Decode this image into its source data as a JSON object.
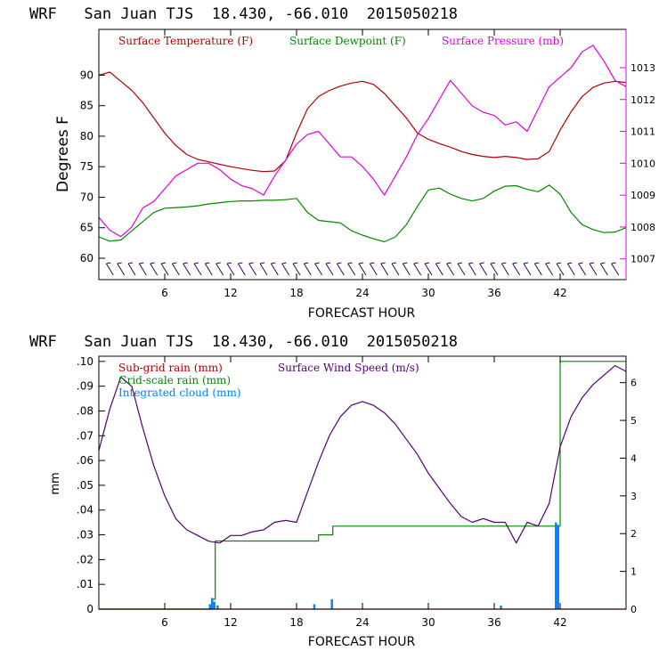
{
  "chart_data": [
    {
      "type": "line",
      "title": "WRF   San Juan TJS  18.430, -66.010  2015050218",
      "xlabel": "FORECAST HOUR",
      "ylabel": "Degrees F",
      "xlim": [
        0,
        48
      ],
      "xticks": [
        6,
        12,
        18,
        24,
        30,
        36,
        42
      ],
      "ylim": [
        56.5,
        97.5
      ],
      "yticks": [
        60,
        65,
        70,
        75,
        80,
        85,
        90
      ],
      "y2lim": [
        1006.35,
        1014.2
      ],
      "y2ticks": [
        1007,
        1008,
        1009,
        1010,
        1011,
        1012,
        1013
      ],
      "grid": false,
      "legend_position": "top",
      "series": [
        {
          "name": "Surface Temperature (F)",
          "color": "#b00000",
          "axis": "left",
          "x": [
            0,
            1,
            2,
            3,
            4,
            5,
            6,
            7,
            8,
            9,
            10,
            11,
            12,
            13,
            14,
            15,
            16,
            17,
            18,
            19,
            20,
            21,
            22,
            23,
            24,
            25,
            26,
            27,
            28,
            29,
            30,
            31,
            32,
            33,
            34,
            35,
            36,
            37,
            38,
            39,
            40,
            41,
            42,
            43,
            44,
            45,
            46,
            47,
            48
          ],
          "values": [
            90,
            90.5,
            89,
            87.5,
            85.5,
            83,
            80.5,
            78.5,
            77,
            76.2,
            75.8,
            75.4,
            75,
            74.7,
            74.4,
            74.2,
            74.3,
            76,
            80.5,
            84.5,
            86.5,
            87.5,
            88.2,
            88.7,
            89,
            88.5,
            87,
            85,
            83,
            80.5,
            79.5,
            78.8,
            78.2,
            77.5,
            77,
            76.7,
            76.5,
            76.7,
            76.5,
            76.2,
            76.3,
            77.5,
            81,
            84,
            86.5,
            88,
            88.7,
            89,
            88.8
          ]
        },
        {
          "name": "Surface Dewpoint (F)",
          "color": "#008800",
          "axis": "left",
          "x": [
            0,
            1,
            2,
            3,
            4,
            5,
            6,
            7,
            8,
            9,
            10,
            11,
            12,
            13,
            14,
            15,
            16,
            17,
            18,
            19,
            20,
            21,
            22,
            23,
            24,
            25,
            26,
            27,
            28,
            29,
            30,
            31,
            32,
            33,
            34,
            35,
            36,
            37,
            38,
            39,
            40,
            41,
            42,
            43,
            44,
            45,
            46,
            47,
            48
          ],
          "values": [
            63.5,
            62.8,
            63,
            64.5,
            66,
            67.5,
            68.2,
            68.3,
            68.4,
            68.6,
            68.9,
            69.1,
            69.3,
            69.4,
            69.4,
            69.5,
            69.5,
            69.6,
            69.8,
            67.5,
            66.2,
            66,
            65.8,
            64.5,
            63.8,
            63.2,
            62.7,
            63.5,
            65.5,
            68.5,
            71.2,
            71.5,
            70.5,
            69.8,
            69.4,
            69.8,
            71,
            71.8,
            71.9,
            71.3,
            70.9,
            72,
            70.5,
            67.5,
            65.5,
            64.7,
            64.2,
            64.3,
            65
          ]
        },
        {
          "name": "Surface Pressure (mb)",
          "color": "#e000e0",
          "axis": "right",
          "x": [
            0,
            1,
            2,
            3,
            4,
            5,
            6,
            7,
            8,
            9,
            10,
            11,
            12,
            13,
            14,
            15,
            16,
            17,
            18,
            19,
            20,
            21,
            22,
            23,
            24,
            25,
            26,
            27,
            28,
            29,
            30,
            31,
            32,
            33,
            34,
            35,
            36,
            37,
            38,
            39,
            40,
            41,
            42,
            43,
            44,
            45,
            46,
            47,
            48
          ],
          "values": [
            1008.3,
            1007.9,
            1007.7,
            1008.0,
            1008.6,
            1008.8,
            1009.2,
            1009.6,
            1009.8,
            1010.0,
            1010.0,
            1009.8,
            1009.5,
            1009.3,
            1009.2,
            1009.0,
            1009.6,
            1010.1,
            1010.6,
            1010.9,
            1011.0,
            1010.6,
            1010.2,
            1010.2,
            1009.9,
            1009.5,
            1009.0,
            1009.6,
            1010.2,
            1010.9,
            1011.4,
            1012.0,
            1012.6,
            1012.2,
            1011.8,
            1011.6,
            1011.5,
            1011.2,
            1011.3,
            1011.0,
            1011.7,
            1012.4,
            1012.7,
            1013.0,
            1013.5,
            1013.7,
            1013.2,
            1012.6,
            1012.4
          ]
        }
      ]
    },
    {
      "type": "line",
      "title": "WRF   San Juan TJS  18.430, -66.010  2015050218",
      "xlabel": "FORECAST HOUR",
      "ylabel": "mm",
      "xlim": [
        0,
        48
      ],
      "xticks": [
        6,
        12,
        18,
        24,
        30,
        36,
        42
      ],
      "ylim": [
        0,
        0.1021
      ],
      "yticks": [
        0,
        0.01,
        0.02,
        0.03,
        0.04,
        0.05,
        0.06,
        0.07,
        0.08,
        0.09,
        0.1
      ],
      "ytick_labels": [
        "0",
        ".01",
        ".02",
        ".03",
        ".04",
        ".05",
        ".06",
        ".07",
        ".08",
        ".09",
        ".10"
      ],
      "y2lim": [
        0,
        6.7
      ],
      "y2ticks": [
        0,
        1,
        2,
        3,
        4,
        5,
        6
      ],
      "grid": false,
      "legend_position": "top-left",
      "series": [
        {
          "name": "Sub-grid rain (mm)",
          "color": "#b00000",
          "axis": "left",
          "x": [
            0,
            48
          ],
          "values": [
            0,
            0
          ]
        },
        {
          "name": "Grid-scale rain (mm)",
          "color": "#008800",
          "axis": "left",
          "step": true,
          "x": [
            0,
            10.0,
            10.3,
            10.6,
            19.7,
            20.0,
            21.0,
            21.3,
            40.5,
            41.2,
            42.0,
            48
          ],
          "values": [
            0,
            0,
            0.004,
            0.0275,
            0.0275,
            0.03,
            0.03,
            0.0335,
            0.0335,
            0.0335,
            0.1,
            0.1
          ]
        },
        {
          "name": "Integrated cloud (mm)",
          "color": "#0080ff",
          "axis": "left",
          "bars": true,
          "x": [
            10.1,
            10.3,
            10.5,
            10.8,
            19.6,
            21.2,
            36.6,
            41.6,
            41.8
          ],
          "values": [
            0.002,
            0.0045,
            0.003,
            0.0015,
            0.002,
            0.004,
            0.0015,
            0.035,
            0.034
          ]
        },
        {
          "name": "Surface Wind Speed (m/s)",
          "color": "#500070",
          "axis": "right",
          "x": [
            0,
            1,
            2,
            3,
            4,
            5,
            6,
            7,
            8,
            9,
            10,
            11,
            12,
            13,
            14,
            15,
            16,
            17,
            18,
            19,
            20,
            21,
            22,
            23,
            24,
            25,
            26,
            27,
            28,
            29,
            30,
            31,
            32,
            33,
            34,
            35,
            36,
            37,
            38,
            39,
            40,
            41,
            42,
            43,
            44,
            45,
            46,
            47,
            48
          ],
          "values": [
            4.2,
            5.3,
            6.15,
            5.9,
            4.8,
            3.8,
            3.0,
            2.4,
            2.1,
            1.95,
            1.8,
            1.75,
            1.95,
            1.95,
            2.05,
            2.1,
            2.3,
            2.35,
            2.3,
            3.1,
            3.9,
            4.6,
            5.1,
            5.4,
            5.5,
            5.4,
            5.2,
            4.9,
            4.5,
            4.1,
            3.6,
            3.2,
            2.8,
            2.45,
            2.3,
            2.4,
            2.3,
            2.3,
            1.75,
            2.3,
            2.2,
            2.8,
            4.3,
            5.1,
            5.6,
            5.95,
            6.2,
            6.45,
            6.3
          ]
        }
      ]
    }
  ]
}
